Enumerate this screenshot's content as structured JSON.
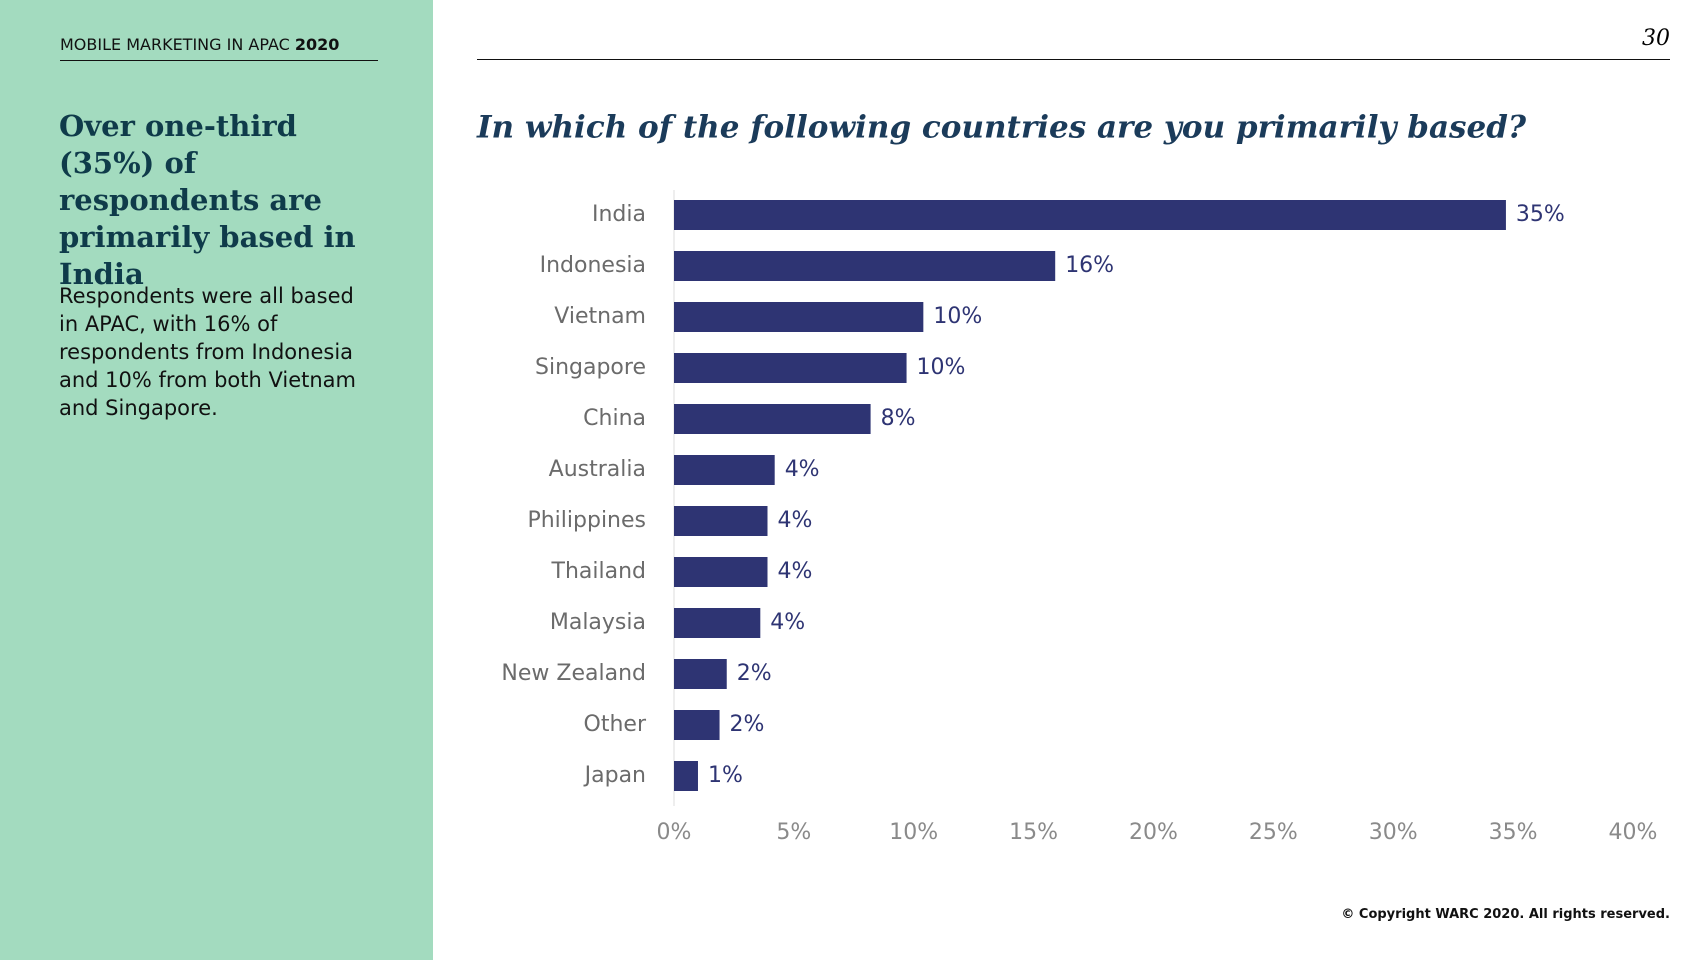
{
  "header": {
    "report": "MOBILE MARKETING IN APAC",
    "year": "2020",
    "page": "30"
  },
  "sidebar": {
    "headline": "Over one-third (35%) of respondents are primarily based in India",
    "body": "Respondents were all based in APAC, with 16% of respondents from Indonesia and 10% from both Vietnam and Singapore."
  },
  "chart_data": {
    "type": "bar",
    "orientation": "horizontal",
    "title": "In which of the following countries are you primarily based?",
    "categories": [
      "India",
      "Indonesia",
      "Vietnam",
      "Singapore",
      "China",
      "Australia",
      "Philippines",
      "Thailand",
      "Malaysia",
      "New Zealand",
      "Other",
      "Japan"
    ],
    "values": [
      34.7,
      15.9,
      10.4,
      9.7,
      8.2,
      4.2,
      3.9,
      3.9,
      3.6,
      2.2,
      1.9,
      1.0
    ],
    "value_labels": [
      "35%",
      "16%",
      "10%",
      "10%",
      "8%",
      "4%",
      "4%",
      "4%",
      "4%",
      "2%",
      "2%",
      "1%"
    ],
    "color": "#2e3473",
    "xlim": [
      0,
      40
    ],
    "xticks": [
      {
        "value": 0,
        "label": "0%"
      },
      {
        "value": 5,
        "label": "5%"
      },
      {
        "value": 10,
        "label": "10%"
      },
      {
        "value": 15,
        "label": "15%"
      },
      {
        "value": 20,
        "label": "20%"
      },
      {
        "value": 25,
        "label": "25%"
      },
      {
        "value": 30,
        "label": "30%"
      },
      {
        "value": 35,
        "label": "35%"
      },
      {
        "value": 40,
        "label": "40%"
      }
    ],
    "grid": false
  },
  "footer": {
    "copyright": "© Copyright WARC 2020. All rights reserved."
  }
}
